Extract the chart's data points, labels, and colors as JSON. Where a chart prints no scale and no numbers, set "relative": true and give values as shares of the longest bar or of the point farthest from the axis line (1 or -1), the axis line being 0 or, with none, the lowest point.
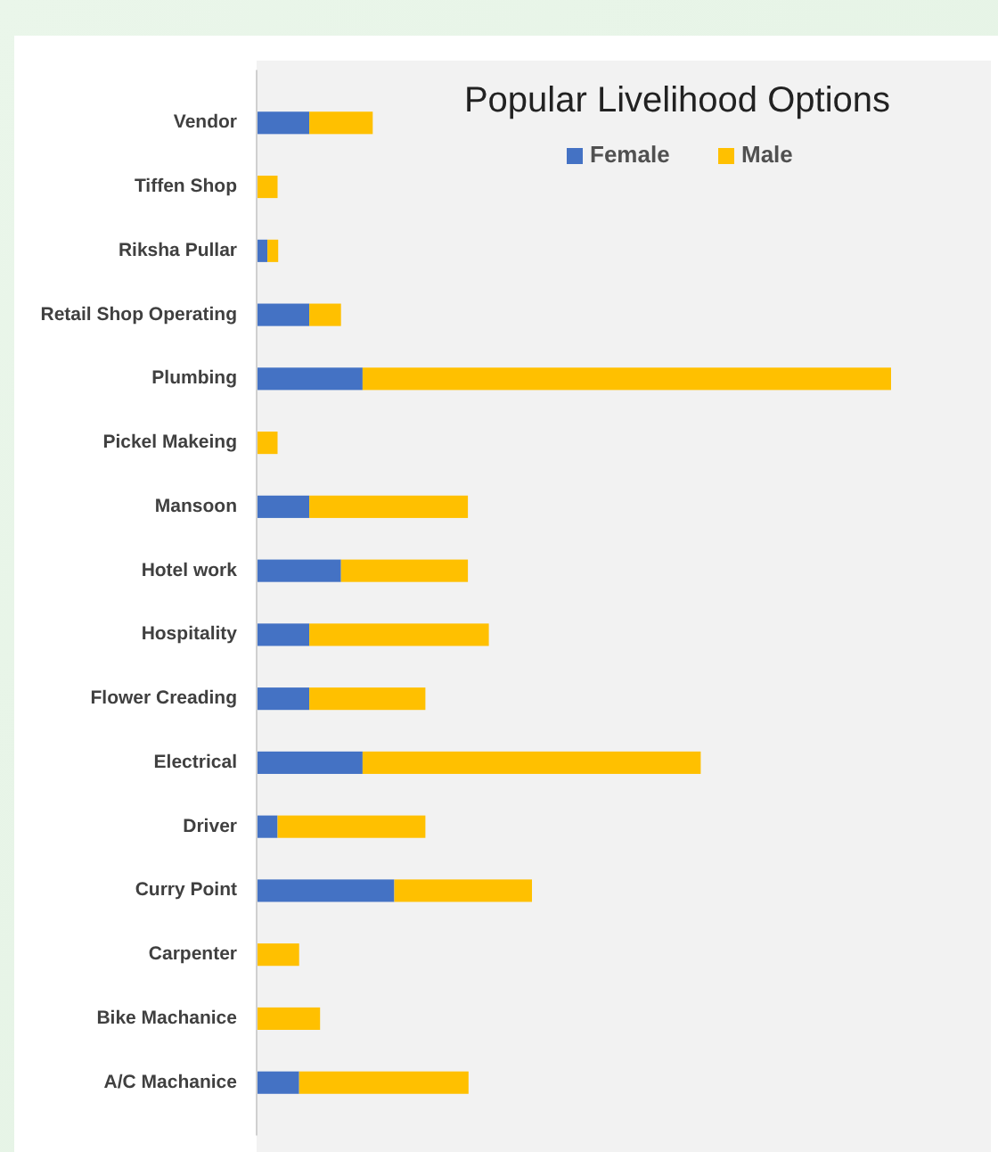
{
  "chart_data": {
    "type": "bar",
    "orientation": "horizontal",
    "stacked": true,
    "relative": true,
    "title": "Popular Livelihood Options",
    "legend": "top right",
    "categories": [
      "Vendor",
      "Tiffen Shop",
      "Riksha Pullar",
      "Retail Shop Operating",
      "Plumbing",
      "Pickel Makeing",
      "Mansoon",
      "Hotel work",
      "Hospitality",
      "Flower Creading",
      "Electrical",
      "Driver",
      "Curry Point",
      "Carpenter",
      "Bike Machanice",
      "A/C Machanice"
    ],
    "series": [
      {
        "name": "Female",
        "color": "#4472c4",
        "values": [
          0.083,
          0,
          0.017,
          0.083,
          0.167,
          0,
          0.083,
          0.133,
          0.083,
          0.083,
          0.167,
          0.033,
          0.217,
          0,
          0,
          0.067
        ]
      },
      {
        "name": "Male",
        "color": "#ffc000",
        "values": [
          0.1,
          0.033,
          0.017,
          0.05,
          0.833,
          0.033,
          0.25,
          0.2,
          0.283,
          0.183,
          0.533,
          0.233,
          0.217,
          0.067,
          0.1,
          0.267
        ]
      }
    ]
  }
}
